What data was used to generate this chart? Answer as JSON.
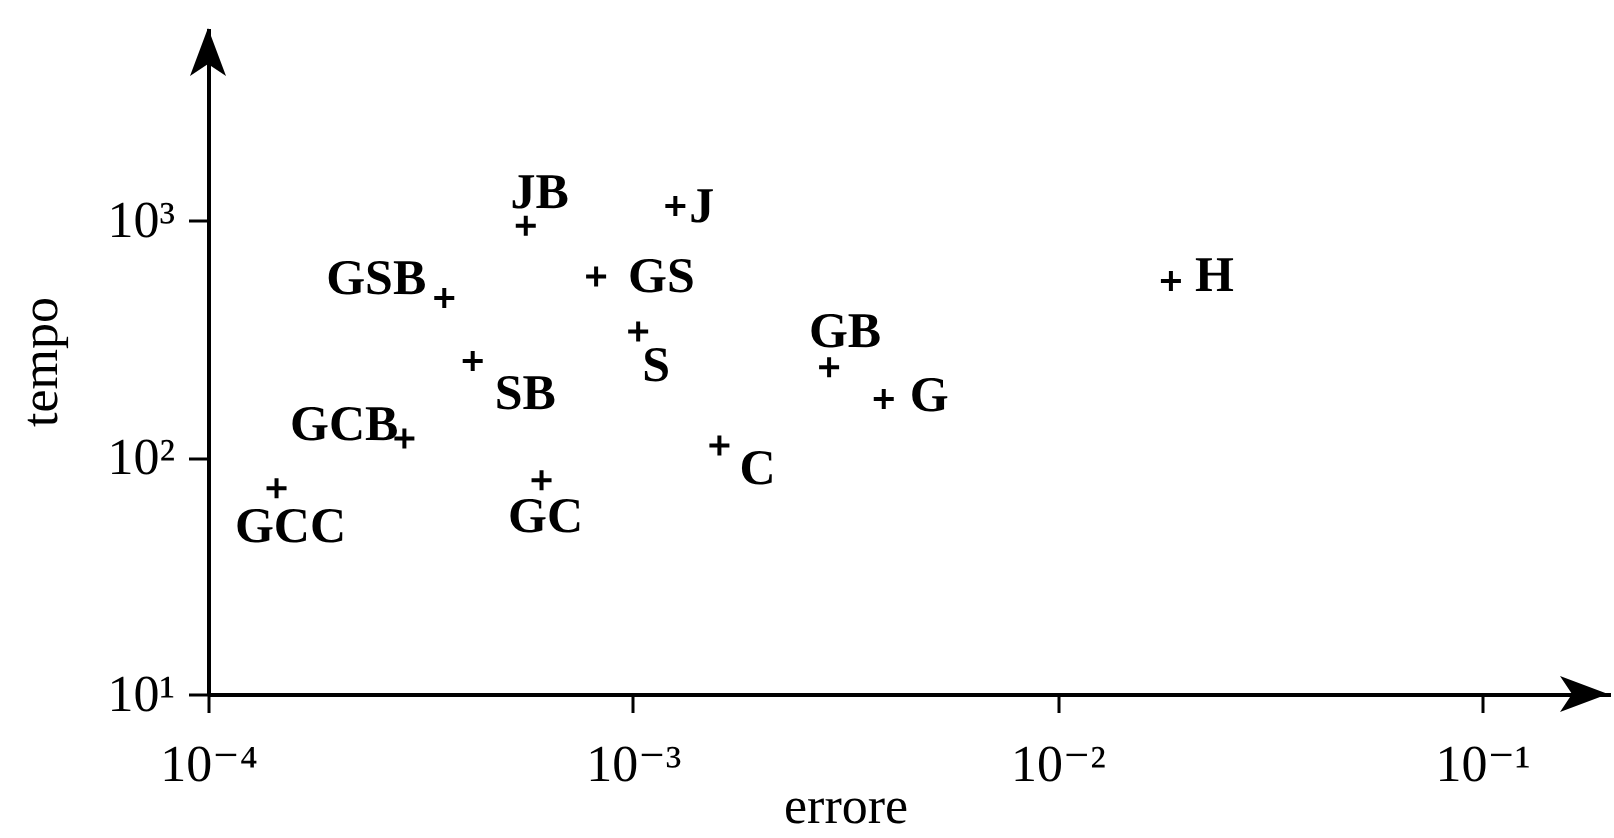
{
  "chart_data": {
    "type": "scatter",
    "xlabel": "errore",
    "ylabel": "tempo",
    "x": [
      0.000145,
      0.00029,
      0.00036,
      0.00042,
      0.00056,
      0.00061,
      0.00082,
      0.00103,
      0.00126,
      0.0016,
      0.0029,
      0.0039,
      0.0185
    ],
    "values": [
      74,
      120,
      470,
      255,
      950,
      80,
      580,
      340,
      1150,
      112,
      240,
      176,
      555
    ],
    "color": "#000000",
    "marker": "cross",
    "log": "xy",
    "xlim": [
      0.0001,
      0.2
    ],
    "xticks": [
      {
        "value": 0.0001,
        "label": "10⁻⁴"
      },
      {
        "value": 0.001,
        "label": "10⁻³"
      },
      {
        "value": 0.01,
        "label": "10⁻²"
      },
      {
        "value": 0.1,
        "label": "10⁻¹"
      }
    ],
    "ylim": [
      10,
      6500
    ],
    "yticks": [
      {
        "value": 10,
        "label": "10¹"
      },
      {
        "value": 100,
        "label": "10²"
      },
      {
        "value": 1000,
        "label": "10³"
      }
    ],
    "annotations": [
      {
        "text": "GCC",
        "x": 0.000145,
        "y": 74
      },
      {
        "text": "GCB",
        "x": 0.00029,
        "y": 120
      },
      {
        "text": "GSB",
        "x": 0.00036,
        "y": 470
      },
      {
        "text": "SB",
        "x": 0.00042,
        "y": 255
      },
      {
        "text": "JB",
        "x": 0.00056,
        "y": 950
      },
      {
        "text": "GC",
        "x": 0.00061,
        "y": 80
      },
      {
        "text": "GS",
        "x": 0.00082,
        "y": 580
      },
      {
        "text": "S",
        "x": 0.00103,
        "y": 340
      },
      {
        "text": "J",
        "x": 0.00126,
        "y": 1150
      },
      {
        "text": "C",
        "x": 0.0016,
        "y": 112
      },
      {
        "text": "GB",
        "x": 0.0029,
        "y": 240
      },
      {
        "text": "G",
        "x": 0.0039,
        "y": 176
      },
      {
        "text": "H",
        "x": 0.0185,
        "y": 555
      }
    ]
  }
}
